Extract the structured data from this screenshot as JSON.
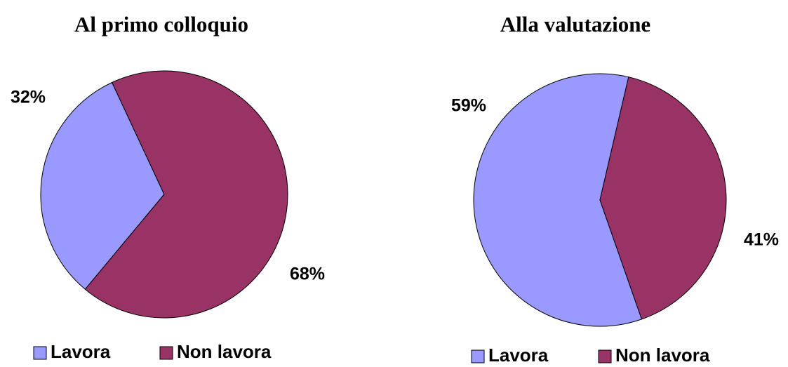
{
  "chart_data": [
    {
      "type": "pie",
      "title": "Al primo colloquio",
      "categories": [
        "Lavora",
        "Non lavora"
      ],
      "values": [
        32,
        68
      ],
      "value_labels": [
        "32%",
        "68%"
      ],
      "colors": [
        "#9999ff",
        "#993366"
      ],
      "legend": "bottom"
    },
    {
      "type": "pie",
      "title": "Alla valutazione",
      "categories": [
        "Lavora",
        "Non lavora"
      ],
      "values": [
        59,
        41
      ],
      "value_labels": [
        "59%",
        "41%"
      ],
      "colors": [
        "#9999ff",
        "#993366"
      ],
      "legend": "bottom"
    }
  ]
}
